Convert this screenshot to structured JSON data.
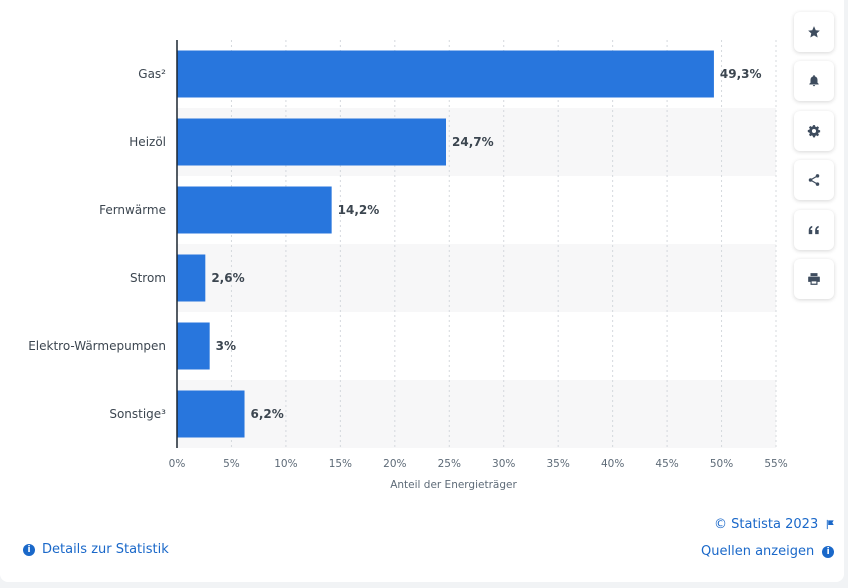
{
  "chart_data": {
    "type": "bar",
    "orientation": "horizontal",
    "categories": [
      "Gas²",
      "Heizöl",
      "Fernwärme",
      "Strom",
      "Elektro-Wärmepumpen",
      "Sonstige³"
    ],
    "values": [
      49.3,
      24.7,
      14.2,
      2.6,
      3,
      6.2
    ],
    "value_labels": [
      "49,3%",
      "24,7%",
      "14,2%",
      "2,6%",
      "3%",
      "6,2%"
    ],
    "xlabel": "Anteil der Energieträger",
    "ylabel": "",
    "xlim": [
      0,
      55
    ],
    "xticks": [
      0,
      5,
      10,
      15,
      20,
      25,
      30,
      35,
      40,
      45,
      50,
      55
    ],
    "xtick_labels": [
      "0%",
      "5%",
      "10%",
      "15%",
      "20%",
      "25%",
      "30%",
      "35%",
      "40%",
      "45%",
      "50%",
      "55%"
    ],
    "grid": "vertical dashed",
    "bar_color": "#2876dd"
  },
  "toolbar": {
    "buttons": [
      "star-icon",
      "bell-icon",
      "gear-icon",
      "share-icon",
      "quote-icon",
      "print-icon"
    ]
  },
  "footer": {
    "copyright": "© Statista 2023",
    "details_label": "Details zur Statistik",
    "sources_label": "Quellen anzeigen"
  },
  "colors": {
    "accent": "#1a68c9",
    "bar": "#2876dd",
    "band": "#f7f7f8"
  }
}
